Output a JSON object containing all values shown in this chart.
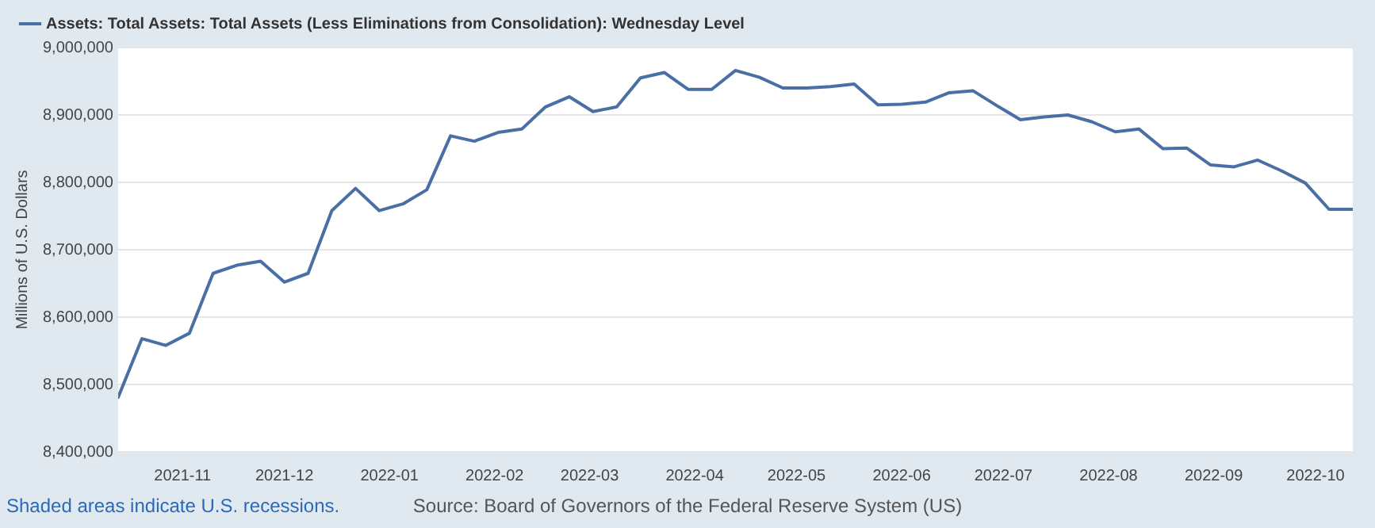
{
  "chart_data": {
    "type": "line",
    "ylabel": "Millions of U.S. Dollars",
    "annotations": [
      "Shaded areas indicate U.S. recessions.",
      "Source: Board of Governors of the Federal Reserve System (US)"
    ],
    "x": [
      "2021-10-13",
      "2021-10-20",
      "2021-10-27",
      "2021-11-03",
      "2021-11-10",
      "2021-11-17",
      "2021-11-24",
      "2021-12-01",
      "2021-12-08",
      "2021-12-15",
      "2021-12-22",
      "2021-12-29",
      "2022-01-05",
      "2022-01-12",
      "2022-01-19",
      "2022-01-26",
      "2022-02-02",
      "2022-02-09",
      "2022-02-16",
      "2022-02-23",
      "2022-03-02",
      "2022-03-09",
      "2022-03-16",
      "2022-03-23",
      "2022-03-30",
      "2022-04-06",
      "2022-04-13",
      "2022-04-20",
      "2022-04-27",
      "2022-05-04",
      "2022-05-11",
      "2022-05-18",
      "2022-05-25",
      "2022-06-01",
      "2022-06-08",
      "2022-06-15",
      "2022-06-22",
      "2022-06-29",
      "2022-07-06",
      "2022-07-13",
      "2022-07-20",
      "2022-07-27",
      "2022-08-03",
      "2022-08-10",
      "2022-08-17",
      "2022-08-24",
      "2022-08-31",
      "2022-09-07",
      "2022-09-14",
      "2022-09-21",
      "2022-09-28",
      "2022-10-05",
      "2022-10-12"
    ],
    "series": [
      {
        "name": "Assets: Total Assets: Total Assets (Less Eliminations from Consolidation): Wednesday Level",
        "color": "#4a6fa5",
        "values": [
          8481000,
          8568000,
          8558000,
          8576000,
          8665000,
          8677000,
          8683000,
          8652000,
          8665000,
          8758000,
          8791000,
          8758000,
          8768000,
          8789000,
          8869000,
          8861000,
          8874000,
          8879000,
          8912000,
          8927000,
          8905000,
          8912000,
          8955000,
          8963000,
          8938000,
          8938000,
          8966000,
          8956000,
          8940000,
          8940000,
          8942000,
          8946000,
          8915000,
          8916000,
          8919000,
          8933000,
          8936000,
          8914000,
          8893000,
          8897000,
          8900000,
          8890000,
          8875000,
          8879000,
          8850000,
          8851000,
          8826000,
          8823000,
          8833000,
          8817000,
          8799000,
          8760000,
          8760000
        ]
      }
    ],
    "xlim": [
      "2021-10-13",
      "2022-10-12"
    ],
    "xticks": [
      "2021-11",
      "2021-12",
      "2022-01",
      "2022-02",
      "2022-03",
      "2022-04",
      "2022-05",
      "2022-06",
      "2022-07",
      "2022-08",
      "2022-09",
      "2022-10"
    ],
    "ylim": [
      8400000,
      9000000
    ],
    "yticks": [
      {
        "value": 8400000,
        "label": "8,400,000"
      },
      {
        "value": 8500000,
        "label": "8,500,000"
      },
      {
        "value": 8600000,
        "label": "8,600,000"
      },
      {
        "value": 8700000,
        "label": "8,700,000"
      },
      {
        "value": 8800000,
        "label": "8,800,000"
      },
      {
        "value": 8900000,
        "label": "8,900,000"
      },
      {
        "value": 9000000,
        "label": "9,000,000"
      }
    ],
    "grid": "y",
    "legend": "top left"
  }
}
